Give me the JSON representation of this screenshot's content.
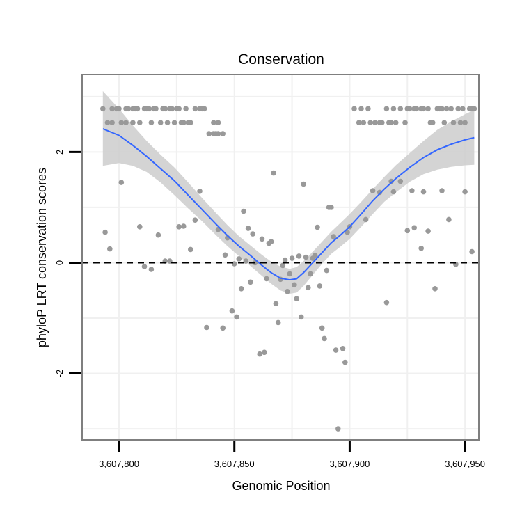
{
  "chart_data": {
    "type": "scatter",
    "title": "Conservation",
    "xlabel": "Genomic Position",
    "ylabel": "phyloP LRT conservation scores",
    "xlim": [
      3607784,
      3607956
    ],
    "ylim": [
      -3.2,
      3.4
    ],
    "x_ticks": [
      3607800,
      3607850,
      3607900,
      3607950
    ],
    "x_tick_labels": [
      "3,607,800",
      "3,607,850",
      "3,607,900",
      "3,607,950"
    ],
    "y_ticks": [
      -2,
      0,
      2
    ],
    "y_tick_labels": [
      "-2",
      "0",
      "2"
    ],
    "reference_line": {
      "y": 0,
      "style": "dashed",
      "color": "#000000"
    },
    "colors": {
      "points": "#999999",
      "smooth": "#3366FF",
      "band": "#CCCCCC",
      "panel_border": "#7f7f7f",
      "grid": "#f0f0f0"
    },
    "series": [
      {
        "name": "points",
        "points": [
          [
            3607793,
            2.78
          ],
          [
            3607795,
            2.53
          ],
          [
            3607797,
            2.53
          ],
          [
            3607799,
            2.78
          ],
          [
            3607801,
            2.53
          ],
          [
            3607803,
            2.53
          ],
          [
            3607804,
            2.78
          ],
          [
            3607806,
            2.53
          ],
          [
            3607807,
            2.78
          ],
          [
            3607809,
            2.53
          ],
          [
            3607811,
            2.78
          ],
          [
            3607813,
            2.78
          ],
          [
            3607814,
            2.53
          ],
          [
            3607816,
            2.78
          ],
          [
            3607818,
            2.53
          ],
          [
            3607819,
            2.78
          ],
          [
            3607821,
            2.53
          ],
          [
            3607822,
            2.78
          ],
          [
            3607824,
            2.53
          ],
          [
            3607825,
            2.78
          ],
          [
            3607827,
            2.53
          ],
          [
            3607829,
            2.78
          ],
          [
            3607831,
            2.53
          ],
          [
            3607833,
            2.78
          ],
          [
            3607835,
            2.78
          ],
          [
            3607837,
            2.78
          ],
          [
            3607839,
            2.33
          ],
          [
            3607841,
            2.53
          ],
          [
            3607843,
            2.53
          ],
          [
            3607845,
            2.33
          ],
          [
            3607841,
            2.33
          ],
          [
            3607843,
            2.33
          ],
          [
            3607797,
            2.78
          ],
          [
            3607800,
            2.78
          ],
          [
            3607803,
            2.78
          ],
          [
            3607806,
            2.78
          ],
          [
            3607808,
            2.78
          ],
          [
            3607812,
            2.78
          ],
          [
            3607815,
            2.78
          ],
          [
            3607820,
            2.78
          ],
          [
            3607823,
            2.78
          ],
          [
            3607826,
            2.78
          ],
          [
            3607828,
            2.53
          ],
          [
            3607830,
            2.53
          ],
          [
            3607836,
            2.78
          ],
          [
            3607842,
            2.33
          ],
          [
            3607794,
            0.55
          ],
          [
            3607796,
            0.25
          ],
          [
            3607801,
            1.45
          ],
          [
            3607809,
            0.65
          ],
          [
            3607811,
            -0.07
          ],
          [
            3607814,
            -0.12
          ],
          [
            3607817,
            0.5
          ],
          [
            3607820,
            0.03
          ],
          [
            3607822,
            0.03
          ],
          [
            3607826,
            0.65
          ],
          [
            3607828,
            0.66
          ],
          [
            3607831,
            0.24
          ],
          [
            3607833,
            0.77
          ],
          [
            3607835,
            1.29
          ],
          [
            3607838,
            -1.17
          ],
          [
            3607843,
            0.6
          ],
          [
            3607845,
            -1.18
          ],
          [
            3607846,
            0.14
          ],
          [
            3607847,
            0.45
          ],
          [
            3607849,
            -0.87
          ],
          [
            3607850,
            -0.02
          ],
          [
            3607851,
            -0.98
          ],
          [
            3607852,
            0.07
          ],
          [
            3607853,
            -0.47
          ],
          [
            3607854,
            0.93
          ],
          [
            3607855,
            0.03
          ],
          [
            3607856,
            0.62
          ],
          [
            3607857,
            -0.35
          ],
          [
            3607858,
            0.52
          ],
          [
            3607859,
            0.0
          ],
          [
            3607861,
            -1.65
          ],
          [
            3607862,
            0.43
          ],
          [
            3607863,
            -1.62
          ],
          [
            3607864,
            -0.29
          ],
          [
            3607865,
            0.35
          ],
          [
            3607866,
            0.38
          ],
          [
            3607867,
            1.62
          ],
          [
            3607868,
            -0.74
          ],
          [
            3607869,
            -1.08
          ],
          [
            3607870,
            -0.3
          ],
          [
            3607871,
            -0.05
          ],
          [
            3607872,
            0.05
          ],
          [
            3607873,
            -0.52
          ],
          [
            3607874,
            -0.2
          ],
          [
            3607875,
            0.08
          ],
          [
            3607876,
            -0.4
          ],
          [
            3607877,
            -0.65
          ],
          [
            3607878,
            0.12
          ],
          [
            3607879,
            -0.98
          ],
          [
            3607880,
            1.42
          ],
          [
            3607881,
            0.1
          ],
          [
            3607882,
            -0.45
          ],
          [
            3607883,
            -0.2
          ],
          [
            3607884,
            0.08
          ],
          [
            3607885,
            0.13
          ],
          [
            3607886,
            0.64
          ],
          [
            3607887,
            -0.42
          ],
          [
            3607888,
            -1.18
          ],
          [
            3607889,
            -1.37
          ],
          [
            3607890,
            -0.14
          ],
          [
            3607891,
            1.0
          ],
          [
            3607892,
            1.0
          ],
          [
            3607893,
            0.47
          ],
          [
            3607894,
            -1.58
          ],
          [
            3607895,
            -3.0
          ],
          [
            3607897,
            -1.55
          ],
          [
            3607898,
            -1.8
          ],
          [
            3607899,
            0.55
          ],
          [
            3607900,
            0.65
          ],
          [
            3607907,
            0.78
          ],
          [
            3607910,
            1.3
          ],
          [
            3607913,
            1.27
          ],
          [
            3607916,
            -0.72
          ],
          [
            3607918,
            1.47
          ],
          [
            3607919,
            1.28
          ],
          [
            3607922,
            1.47
          ],
          [
            3607925,
            0.58
          ],
          [
            3607927,
            1.3
          ],
          [
            3607928,
            0.63
          ],
          [
            3607931,
            0.26
          ],
          [
            3607932,
            1.28
          ],
          [
            3607934,
            0.57
          ],
          [
            3607937,
            -0.47
          ],
          [
            3607940,
            1.3
          ],
          [
            3607943,
            0.78
          ],
          [
            3607946,
            -0.03
          ],
          [
            3607950,
            1.28
          ],
          [
            3607953,
            0.2
          ],
          [
            3607902,
            2.78
          ],
          [
            3607904,
            2.53
          ],
          [
            3607905,
            2.78
          ],
          [
            3607906,
            2.53
          ],
          [
            3607908,
            2.78
          ],
          [
            3607909,
            2.53
          ],
          [
            3607911,
            2.53
          ],
          [
            3607913,
            2.53
          ],
          [
            3607914,
            2.53
          ],
          [
            3607916,
            2.78
          ],
          [
            3607917,
            2.53
          ],
          [
            3607918,
            2.53
          ],
          [
            3607919,
            2.78
          ],
          [
            3607920,
            2.53
          ],
          [
            3607922,
            2.78
          ],
          [
            3607924,
            2.53
          ],
          [
            3607925,
            2.78
          ],
          [
            3607926,
            2.78
          ],
          [
            3607928,
            2.78
          ],
          [
            3607929,
            2.78
          ],
          [
            3607931,
            2.78
          ],
          [
            3607932,
            2.78
          ],
          [
            3607934,
            2.78
          ],
          [
            3607935,
            2.53
          ],
          [
            3607936,
            2.53
          ],
          [
            3607938,
            2.78
          ],
          [
            3607940,
            2.78
          ],
          [
            3607941,
            2.53
          ],
          [
            3607942,
            2.78
          ],
          [
            3607944,
            2.78
          ],
          [
            3607945,
            2.53
          ],
          [
            3607947,
            2.78
          ],
          [
            3607948,
            2.53
          ],
          [
            3607950,
            2.53
          ],
          [
            3607952,
            2.78
          ],
          [
            3607953,
            2.78
          ],
          [
            3607954,
            2.78
          ],
          [
            3607939,
            2.78
          ],
          [
            3607949,
            2.78
          ]
        ]
      },
      {
        "name": "loess-smooth",
        "points": [
          [
            3607793,
            2.42
          ],
          [
            3607800,
            2.3
          ],
          [
            3607806,
            2.12
          ],
          [
            3607812,
            1.92
          ],
          [
            3607818,
            1.7
          ],
          [
            3607824,
            1.48
          ],
          [
            3607830,
            1.22
          ],
          [
            3607836,
            0.96
          ],
          [
            3607842,
            0.7
          ],
          [
            3607847,
            0.49
          ],
          [
            3607852,
            0.3
          ],
          [
            3607857,
            0.13
          ],
          [
            3607862,
            -0.05
          ],
          [
            3607866,
            -0.18
          ],
          [
            3607870,
            -0.28
          ],
          [
            3607874,
            -0.31
          ],
          [
            3607877,
            -0.29
          ],
          [
            3607880,
            -0.18
          ],
          [
            3607884,
            0.0
          ],
          [
            3607888,
            0.18
          ],
          [
            3607892,
            0.36
          ],
          [
            3607896,
            0.5
          ],
          [
            3607900,
            0.65
          ],
          [
            3607905,
            0.88
          ],
          [
            3607910,
            1.12
          ],
          [
            3607915,
            1.33
          ],
          [
            3607920,
            1.52
          ],
          [
            3607926,
            1.72
          ],
          [
            3607932,
            1.9
          ],
          [
            3607938,
            2.04
          ],
          [
            3607944,
            2.14
          ],
          [
            3607950,
            2.22
          ],
          [
            3607954,
            2.26
          ]
        ]
      },
      {
        "name": "confidence-band",
        "upper": [
          [
            3607793,
            3.1
          ],
          [
            3607800,
            2.78
          ],
          [
            3607806,
            2.48
          ],
          [
            3607812,
            2.2
          ],
          [
            3607818,
            1.95
          ],
          [
            3607824,
            1.72
          ],
          [
            3607830,
            1.45
          ],
          [
            3607836,
            1.17
          ],
          [
            3607842,
            0.9
          ],
          [
            3607847,
            0.68
          ],
          [
            3607852,
            0.48
          ],
          [
            3607857,
            0.31
          ],
          [
            3607862,
            0.14
          ],
          [
            3607866,
            0.02
          ],
          [
            3607870,
            -0.07
          ],
          [
            3607874,
            -0.11
          ],
          [
            3607877,
            -0.08
          ],
          [
            3607880,
            0.03
          ],
          [
            3607884,
            0.2
          ],
          [
            3607888,
            0.38
          ],
          [
            3607892,
            0.56
          ],
          [
            3607896,
            0.72
          ],
          [
            3607900,
            0.88
          ],
          [
            3607905,
            1.1
          ],
          [
            3607910,
            1.33
          ],
          [
            3607915,
            1.55
          ],
          [
            3607920,
            1.76
          ],
          [
            3607926,
            1.98
          ],
          [
            3607932,
            2.2
          ],
          [
            3607938,
            2.4
          ],
          [
            3607944,
            2.55
          ],
          [
            3607950,
            2.68
          ],
          [
            3607954,
            2.76
          ]
        ],
        "lower": [
          [
            3607793,
            1.75
          ],
          [
            3607800,
            1.8
          ],
          [
            3607806,
            1.75
          ],
          [
            3607812,
            1.64
          ],
          [
            3607818,
            1.45
          ],
          [
            3607824,
            1.22
          ],
          [
            3607830,
            0.98
          ],
          [
            3607836,
            0.75
          ],
          [
            3607842,
            0.5
          ],
          [
            3607847,
            0.3
          ],
          [
            3607852,
            0.12
          ],
          [
            3607857,
            -0.06
          ],
          [
            3607862,
            -0.24
          ],
          [
            3607866,
            -0.38
          ],
          [
            3607870,
            -0.5
          ],
          [
            3607874,
            -0.56
          ],
          [
            3607877,
            -0.54
          ],
          [
            3607880,
            -0.42
          ],
          [
            3607884,
            -0.22
          ],
          [
            3607888,
            -0.02
          ],
          [
            3607892,
            0.16
          ],
          [
            3607896,
            0.29
          ],
          [
            3607900,
            0.43
          ],
          [
            3607905,
            0.65
          ],
          [
            3607910,
            0.88
          ],
          [
            3607915,
            1.1
          ],
          [
            3607920,
            1.27
          ],
          [
            3607926,
            1.46
          ],
          [
            3607932,
            1.6
          ],
          [
            3607938,
            1.68
          ],
          [
            3607944,
            1.73
          ],
          [
            3607950,
            1.76
          ],
          [
            3607954,
            1.77
          ]
        ]
      }
    ]
  }
}
